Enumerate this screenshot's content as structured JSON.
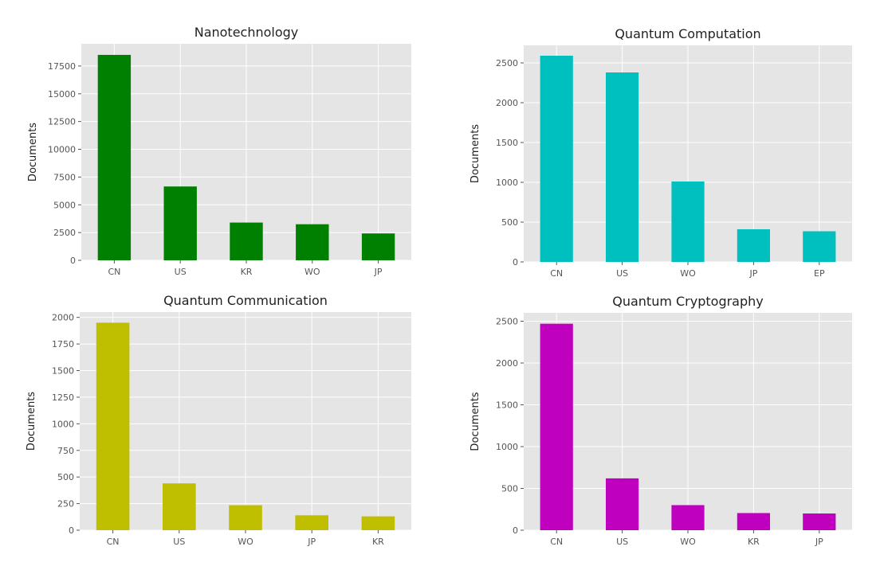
{
  "chart_data": [
    {
      "type": "bar",
      "title": "Nanotechnology",
      "ylabel": "Documents",
      "xlabel": "",
      "categories": [
        "CN",
        "US",
        "KR",
        "WO",
        "JP"
      ],
      "values": [
        18500,
        6650,
        3400,
        3250,
        2420
      ],
      "ylim": [
        0,
        19500
      ],
      "yticks": [
        0,
        2500,
        5000,
        7500,
        10000,
        12500,
        15000,
        17500
      ],
      "color": "#008000",
      "grid": true,
      "background": "#e5e5e5"
    },
    {
      "type": "bar",
      "title": "Quantum Computation",
      "ylabel": "Documents",
      "xlabel": "",
      "categories": [
        "CN",
        "US",
        "WO",
        "JP",
        "EP"
      ],
      "values": [
        2590,
        2380,
        1010,
        410,
        385
      ],
      "ylim": [
        0,
        2720
      ],
      "yticks": [
        0,
        500,
        1000,
        1500,
        2000,
        2500
      ],
      "color": "#00bfbf",
      "grid": true,
      "background": "#e5e5e5"
    },
    {
      "type": "bar",
      "title": "Quantum Communication",
      "ylabel": "Documents",
      "xlabel": "",
      "categories": [
        "CN",
        "US",
        "WO",
        "JP",
        "KR"
      ],
      "values": [
        1950,
        440,
        235,
        140,
        130
      ],
      "ylim": [
        0,
        2050
      ],
      "yticks": [
        0,
        250,
        500,
        750,
        1000,
        1250,
        1500,
        1750,
        2000
      ],
      "color": "#bfbf00",
      "grid": true,
      "background": "#e5e5e5"
    },
    {
      "type": "bar",
      "title": "Quantum Cryptography",
      "ylabel": "Documents",
      "xlabel": "",
      "categories": [
        "CN",
        "US",
        "WO",
        "KR",
        "JP"
      ],
      "values": [
        2470,
        620,
        300,
        205,
        200
      ],
      "ylim": [
        0,
        2600
      ],
      "yticks": [
        0,
        500,
        1000,
        1500,
        2000,
        2500
      ],
      "color": "#bf00bf",
      "grid": true,
      "background": "#e5e5e5"
    }
  ]
}
